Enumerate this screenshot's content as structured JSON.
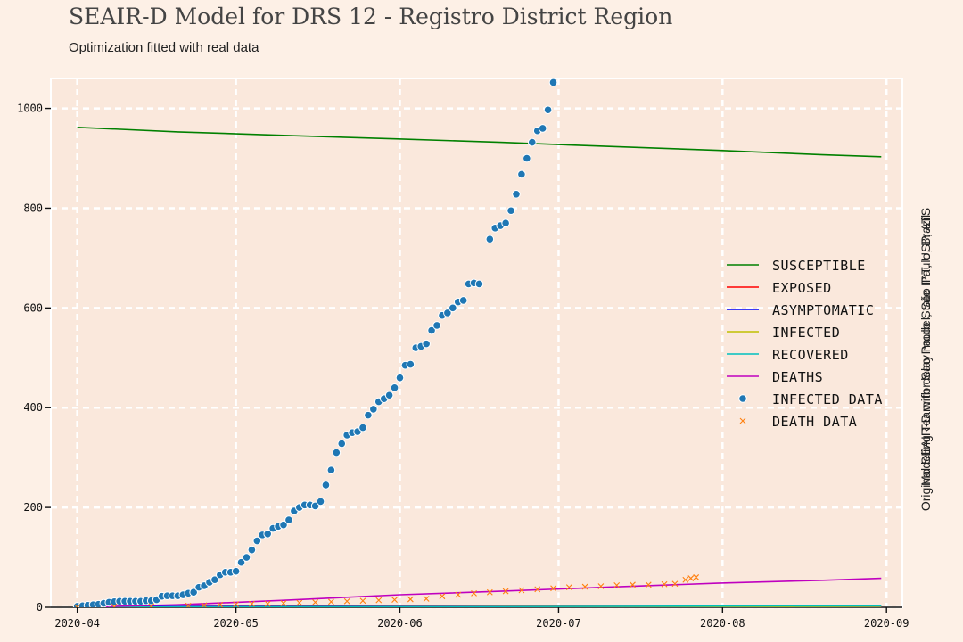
{
  "header": {
    "title": "SEAIR-D Model for DRS 12 - Registro District Region",
    "subtitle": "Optimization fitted with real data"
  },
  "credits": {
    "line1": "Modeling Team for Sao Paulo State IPT, USP, ATS",
    "line2": "Original SEAIR-D with delay model, São Paulo, Brazil"
  },
  "chart_data": {
    "type": "line",
    "title": "SEAIR-D Model for DRS 12 - Registro District Region",
    "subtitle": "Optimization fitted with real data",
    "xlabel": "",
    "ylabel": "",
    "x_start": "2020-04-01",
    "x_end": "2020-08-31",
    "xlim": [
      "2020-03-27",
      "2020-09-04"
    ],
    "ylim": [
      0,
      1060
    ],
    "x_ticks": [
      "2020-04-01",
      "2020-05-01",
      "2020-06-01",
      "2020-07-01",
      "2020-08-01",
      "2020-09-01"
    ],
    "x_tick_labels": [
      "2020-04",
      "2020-05",
      "2020-06",
      "2020-07",
      "2020-08",
      "2020-09"
    ],
    "y_ticks": [
      0,
      200,
      400,
      600,
      800,
      1000
    ],
    "y_tick_labels": [
      "0",
      "200",
      "400",
      "600",
      "800",
      "1000"
    ],
    "grid": true,
    "legend_position": "right",
    "colors": {
      "background": "#fdf0e6",
      "plot_background": "#fae8dc",
      "grid": "#ffffff",
      "susceptible": "#008000",
      "exposed": "#ff0000",
      "asymptomatic": "#0000ff",
      "infected": "#bfbf00",
      "recovered": "#00bfbf",
      "deaths": "#bf00bf",
      "infected_data": "#1f77b4",
      "death_data": "#ff7f0e"
    },
    "series": [
      {
        "name": "Susceptible",
        "type": "line",
        "color": "#008000",
        "points": [
          [
            "2020-04-01",
            962
          ],
          [
            "2020-04-20",
            953
          ],
          [
            "2020-05-10",
            946
          ],
          [
            "2020-05-31",
            939
          ],
          [
            "2020-06-20",
            932
          ],
          [
            "2020-07-10",
            924
          ],
          [
            "2020-07-31",
            916
          ],
          [
            "2020-08-20",
            907
          ],
          [
            "2020-08-31",
            903
          ]
        ]
      },
      {
        "name": "Exposed",
        "type": "line",
        "color": "#ff0000",
        "points": [
          [
            "2020-04-01",
            1
          ],
          [
            "2020-05-15",
            2
          ],
          [
            "2020-07-01",
            2
          ],
          [
            "2020-08-31",
            1
          ]
        ]
      },
      {
        "name": "Asymptomatic",
        "type": "line",
        "color": "#0000ff",
        "points": [
          [
            "2020-04-01",
            1
          ],
          [
            "2020-05-15",
            2
          ],
          [
            "2020-07-01",
            1
          ],
          [
            "2020-08-31",
            1
          ]
        ]
      },
      {
        "name": "Infected",
        "type": "line",
        "color": "#bfbf00",
        "points": [
          [
            "2020-04-01",
            0
          ],
          [
            "2020-05-15",
            1
          ],
          [
            "2020-07-01",
            1
          ],
          [
            "2020-08-31",
            0
          ]
        ]
      },
      {
        "name": "Recovered",
        "type": "line",
        "color": "#00bfbf",
        "points": [
          [
            "2020-04-01",
            0
          ],
          [
            "2020-06-01",
            1
          ],
          [
            "2020-07-15",
            2
          ],
          [
            "2020-08-31",
            3
          ]
        ]
      },
      {
        "name": "Deaths",
        "type": "line",
        "color": "#bf00bf",
        "points": [
          [
            "2020-04-01",
            0
          ],
          [
            "2020-04-20",
            5
          ],
          [
            "2020-05-10",
            14
          ],
          [
            "2020-06-01",
            25
          ],
          [
            "2020-06-20",
            32
          ],
          [
            "2020-07-10",
            40
          ],
          [
            "2020-07-31",
            48
          ],
          [
            "2020-08-20",
            54
          ],
          [
            "2020-08-31",
            58
          ]
        ]
      },
      {
        "name": "Infected Data",
        "type": "scatter",
        "marker": "circle",
        "color": "#1f77b4",
        "points": [
          [
            "2020-04-01",
            2
          ],
          [
            "2020-04-02",
            3
          ],
          [
            "2020-04-03",
            4
          ],
          [
            "2020-04-04",
            5
          ],
          [
            "2020-04-05",
            6
          ],
          [
            "2020-04-06",
            8
          ],
          [
            "2020-04-07",
            10
          ],
          [
            "2020-04-08",
            11
          ],
          [
            "2020-04-09",
            12
          ],
          [
            "2020-04-10",
            12
          ],
          [
            "2020-04-11",
            12
          ],
          [
            "2020-04-12",
            12
          ],
          [
            "2020-04-13",
            12
          ],
          [
            "2020-04-14",
            13
          ],
          [
            "2020-04-15",
            13
          ],
          [
            "2020-04-16",
            15
          ],
          [
            "2020-04-17",
            22
          ],
          [
            "2020-04-18",
            23
          ],
          [
            "2020-04-19",
            23
          ],
          [
            "2020-04-20",
            23
          ],
          [
            "2020-04-21",
            25
          ],
          [
            "2020-04-22",
            28
          ],
          [
            "2020-04-23",
            30
          ],
          [
            "2020-04-24",
            40
          ],
          [
            "2020-04-25",
            43
          ],
          [
            "2020-04-26",
            50
          ],
          [
            "2020-04-27",
            55
          ],
          [
            "2020-04-28",
            65
          ],
          [
            "2020-04-29",
            70
          ],
          [
            "2020-04-30",
            70
          ],
          [
            "2020-05-01",
            72
          ],
          [
            "2020-05-02",
            90
          ],
          [
            "2020-05-03",
            100
          ],
          [
            "2020-05-04",
            115
          ],
          [
            "2020-05-05",
            133
          ],
          [
            "2020-05-06",
            145
          ],
          [
            "2020-05-07",
            147
          ],
          [
            "2020-05-08",
            158
          ],
          [
            "2020-05-09",
            162
          ],
          [
            "2020-05-10",
            165
          ],
          [
            "2020-05-11",
            175
          ],
          [
            "2020-05-12",
            193
          ],
          [
            "2020-05-13",
            200
          ],
          [
            "2020-05-14",
            205
          ],
          [
            "2020-05-15",
            205
          ],
          [
            "2020-05-16",
            203
          ],
          [
            "2020-05-17",
            212
          ],
          [
            "2020-05-18",
            245
          ],
          [
            "2020-05-19",
            275
          ],
          [
            "2020-05-20",
            310
          ],
          [
            "2020-05-21",
            328
          ],
          [
            "2020-05-22",
            345
          ],
          [
            "2020-05-23",
            350
          ],
          [
            "2020-05-24",
            352
          ],
          [
            "2020-05-25",
            360
          ],
          [
            "2020-05-26",
            385
          ],
          [
            "2020-05-27",
            397
          ],
          [
            "2020-05-28",
            412
          ],
          [
            "2020-05-29",
            418
          ],
          [
            "2020-05-30",
            425
          ],
          [
            "2020-05-31",
            440
          ],
          [
            "2020-06-01",
            460
          ],
          [
            "2020-06-02",
            485
          ],
          [
            "2020-06-03",
            487
          ],
          [
            "2020-06-04",
            520
          ],
          [
            "2020-06-05",
            523
          ],
          [
            "2020-06-06",
            528
          ],
          [
            "2020-06-07",
            555
          ],
          [
            "2020-06-08",
            565
          ],
          [
            "2020-06-09",
            585
          ],
          [
            "2020-06-10",
            590
          ],
          [
            "2020-06-11",
            600
          ],
          [
            "2020-06-12",
            612
          ],
          [
            "2020-06-13",
            615
          ],
          [
            "2020-06-14",
            648
          ],
          [
            "2020-06-15",
            650
          ],
          [
            "2020-06-16",
            648
          ],
          [
            "2020-06-18",
            738
          ],
          [
            "2020-06-19",
            760
          ],
          [
            "2020-06-20",
            765
          ],
          [
            "2020-06-21",
            770
          ],
          [
            "2020-06-22",
            795
          ],
          [
            "2020-06-23",
            828
          ],
          [
            "2020-06-24",
            868
          ],
          [
            "2020-06-25",
            900
          ],
          [
            "2020-06-26",
            932
          ],
          [
            "2020-06-27",
            955
          ],
          [
            "2020-06-28",
            960
          ],
          [
            "2020-06-29",
            997
          ],
          [
            "2020-06-30",
            1052
          ]
        ]
      },
      {
        "name": "Death Data",
        "type": "scatter",
        "marker": "x",
        "color": "#ff7f0e",
        "points": [
          [
            "2020-04-01",
            0
          ],
          [
            "2020-04-08",
            1
          ],
          [
            "2020-04-15",
            2
          ],
          [
            "2020-04-22",
            3
          ],
          [
            "2020-04-25",
            4
          ],
          [
            "2020-04-28",
            5
          ],
          [
            "2020-05-01",
            6
          ],
          [
            "2020-05-04",
            7
          ],
          [
            "2020-05-07",
            7
          ],
          [
            "2020-05-10",
            8
          ],
          [
            "2020-05-13",
            9
          ],
          [
            "2020-05-16",
            10
          ],
          [
            "2020-05-19",
            11
          ],
          [
            "2020-05-22",
            12
          ],
          [
            "2020-05-25",
            13
          ],
          [
            "2020-05-28",
            14
          ],
          [
            "2020-05-31",
            15
          ],
          [
            "2020-06-03",
            16
          ],
          [
            "2020-06-06",
            17
          ],
          [
            "2020-06-09",
            22
          ],
          [
            "2020-06-12",
            25
          ],
          [
            "2020-06-15",
            28
          ],
          [
            "2020-06-18",
            30
          ],
          [
            "2020-06-21",
            32
          ],
          [
            "2020-06-24",
            34
          ],
          [
            "2020-06-27",
            36
          ],
          [
            "2020-06-30",
            38
          ],
          [
            "2020-07-03",
            40
          ],
          [
            "2020-07-06",
            41
          ],
          [
            "2020-07-09",
            42
          ],
          [
            "2020-07-12",
            44
          ],
          [
            "2020-07-15",
            45
          ],
          [
            "2020-07-18",
            45
          ],
          [
            "2020-07-21",
            46
          ],
          [
            "2020-07-23",
            47
          ],
          [
            "2020-07-25",
            55
          ],
          [
            "2020-07-26",
            58
          ],
          [
            "2020-07-27",
            60
          ]
        ]
      }
    ]
  }
}
